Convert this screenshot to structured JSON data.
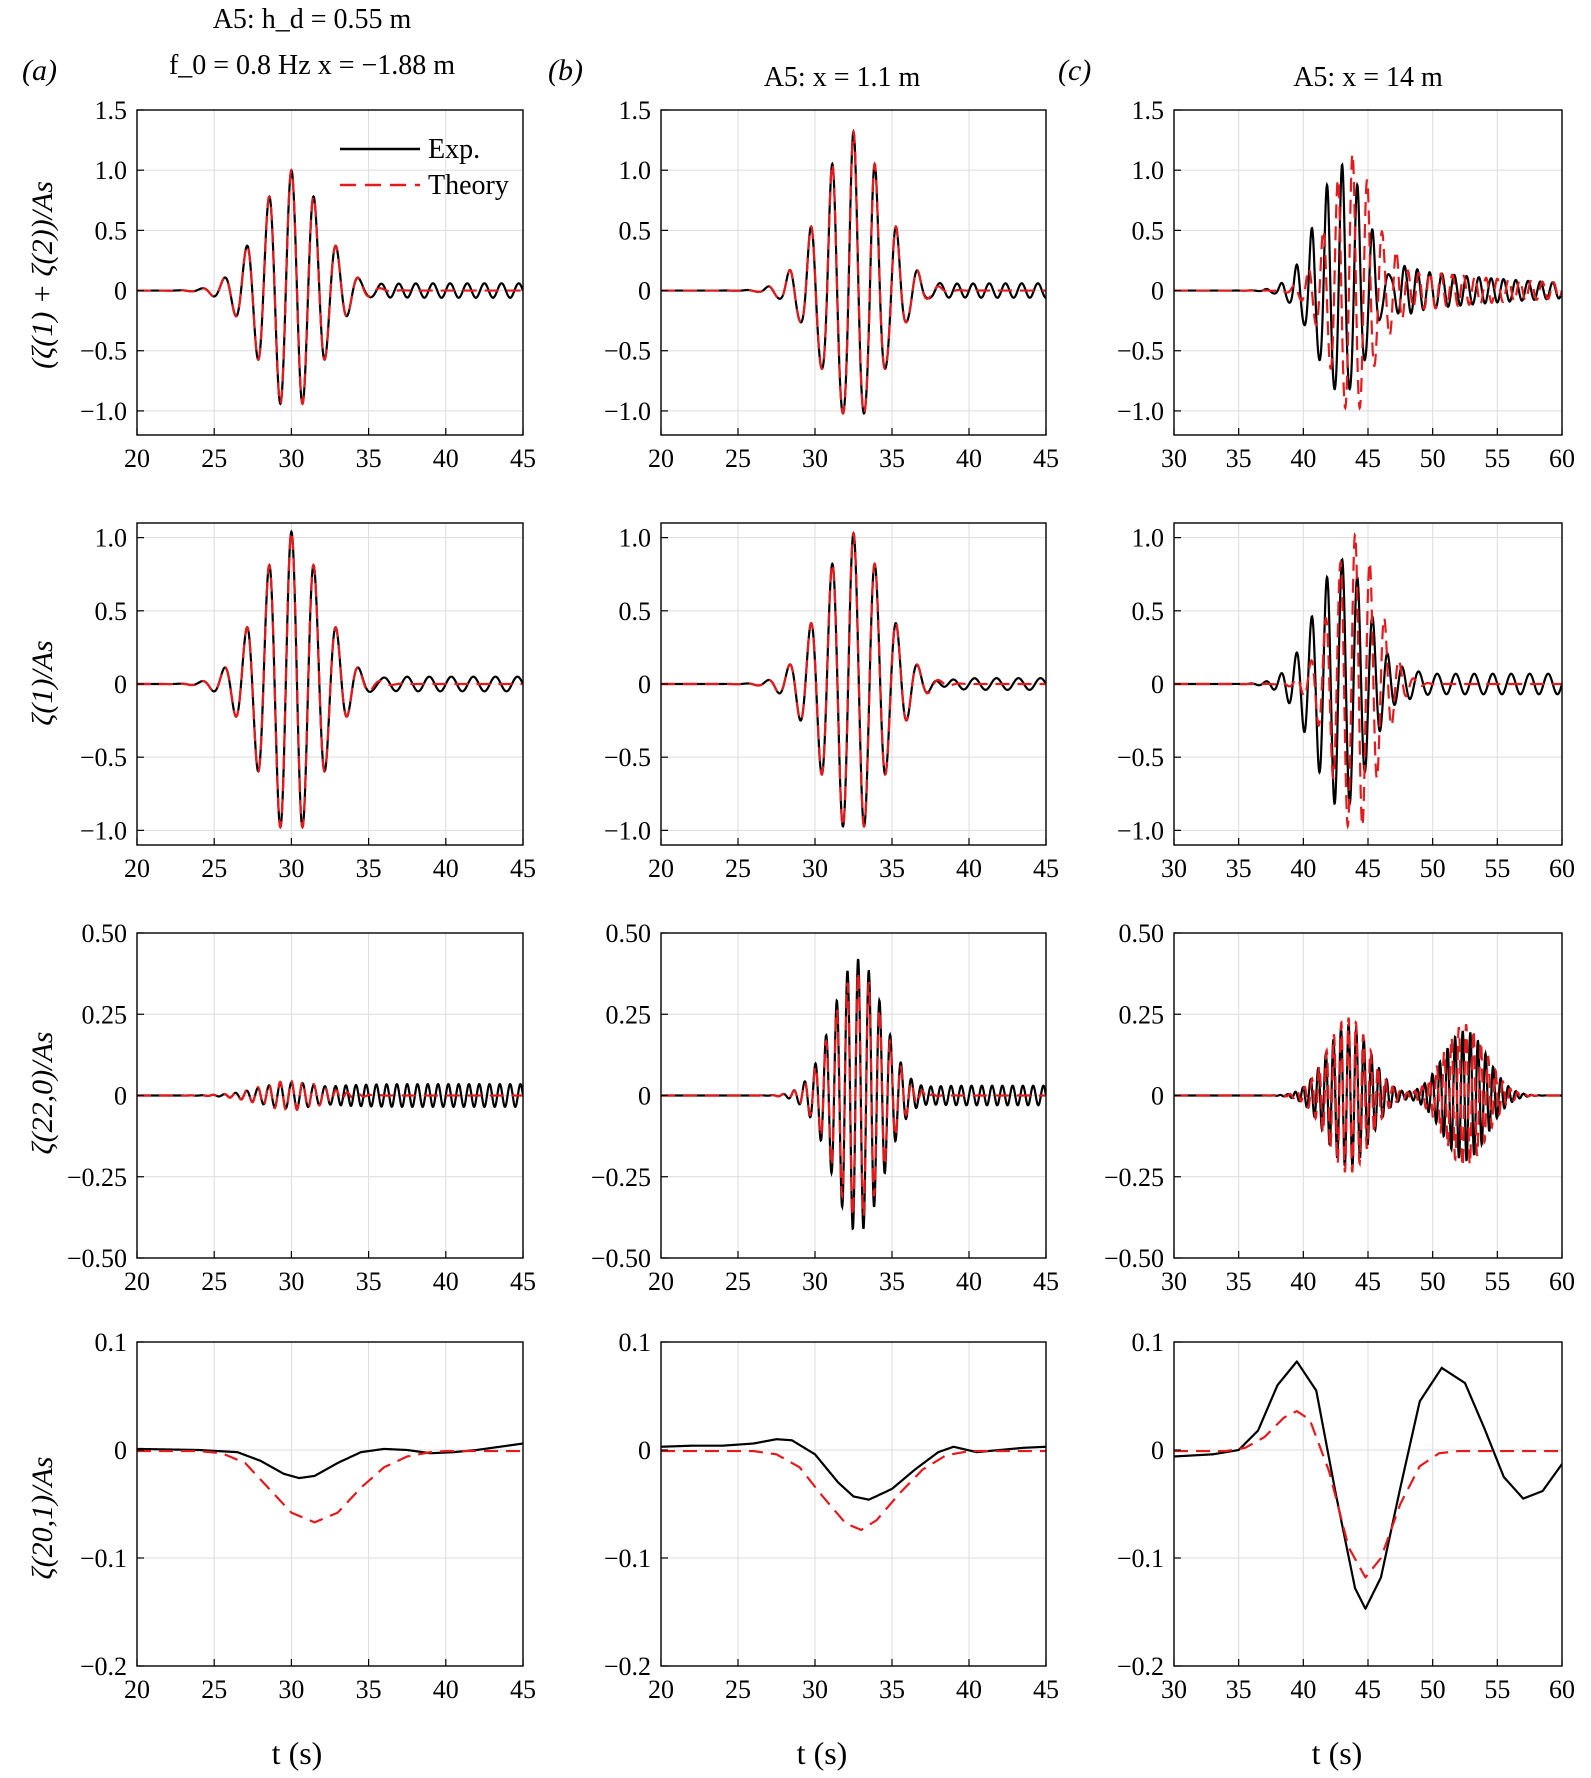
{
  "figure": {
    "panel_letters": [
      "(a)",
      "(b)",
      "(c)"
    ],
    "column_heads": [
      [
        "A5: h_d = 0.55 m",
        "f_0 = 0.8 Hz x = −1.88 m"
      ],
      [
        "A5: x = 1.1 m"
      ],
      [
        "A5: x = 14 m"
      ]
    ],
    "row_ylabels": [
      "(ζ(1) + ζ(2))/As",
      "ζ(1)/As",
      "ζ(22,0)/As",
      "ζ(20,1)/As"
    ],
    "xlabel": "t (s)",
    "legend": [
      {
        "label": "Exp.",
        "color": "#000000",
        "style": "solid"
      },
      {
        "label": "Theory",
        "color": "#e41a1c",
        "style": "dashed"
      }
    ]
  },
  "chart_data": [
    {
      "type": "line",
      "panel": "(a)",
      "row": 1,
      "ylabel": "(ζ(1)+ζ(2))/As",
      "xlim": [
        20,
        45
      ],
      "ylim": [
        -1.2,
        1.5
      ],
      "xticks": [
        20,
        25,
        30,
        35,
        40,
        45
      ],
      "yticks": [
        -1.0,
        -0.5,
        0,
        0.5,
        1.0,
        1.5
      ],
      "ytick_labels": [
        "−1.0",
        "−0.5",
        "0",
        "0.5",
        "1.0",
        "1.5"
      ],
      "grid": true,
      "legend": "top-right",
      "series": [
        {
          "name": "Exp.",
          "color": "#000000",
          "style": "solid",
          "envelope": {
            "type": "gauss",
            "amp": 1.0,
            "center": 30.0,
            "width": 2.9
          },
          "carrier_freq_hz": 0.69,
          "phase_ref": 30.0,
          "tail": {
            "amp": 0.06,
            "freq": 0.9,
            "start": 35.5
          }
        },
        {
          "name": "Theory",
          "color": "#e41a1c",
          "style": "dashed",
          "envelope": {
            "type": "gauss",
            "amp": 1.0,
            "center": 30.0,
            "width": 2.9
          },
          "carrier_freq_hz": 0.69,
          "phase_ref": 30.0
        }
      ]
    },
    {
      "type": "line",
      "panel": "(b)",
      "row": 1,
      "ylabel": "",
      "xlim": [
        20,
        45
      ],
      "ylim": [
        -1.2,
        1.5
      ],
      "xticks": [
        20,
        25,
        30,
        35,
        40,
        45
      ],
      "yticks": [
        -1.0,
        -0.5,
        0,
        0.5,
        1.0,
        1.5
      ],
      "ytick_labels": [
        "−1.0",
        "−0.5",
        "0",
        "0.5",
        "1.0",
        "1.5"
      ],
      "grid": true,
      "series": [
        {
          "name": "Exp.",
          "color": "#000000",
          "style": "solid",
          "envelope": {
            "type": "gauss",
            "amp": 1.2,
            "center": 32.5,
            "width": 2.9
          },
          "carrier_freq_hz": 0.72,
          "phase_ref": 32.5,
          "offset": 0.1,
          "tail": {
            "amp": 0.06,
            "freq": 0.95,
            "start": 38.0
          }
        },
        {
          "name": "Theory",
          "color": "#e41a1c",
          "style": "dashed",
          "envelope": {
            "type": "gauss",
            "amp": 1.2,
            "center": 32.5,
            "width": 2.9
          },
          "carrier_freq_hz": 0.72,
          "phase_ref": 32.5,
          "offset": 0.1
        }
      ]
    },
    {
      "type": "line",
      "panel": "(c)",
      "row": 1,
      "ylabel": "",
      "xlim": [
        30,
        60
      ],
      "ylim": [
        -1.2,
        1.5
      ],
      "xticks": [
        30,
        35,
        40,
        45,
        50,
        55,
        60
      ],
      "yticks": [
        -1.0,
        -0.5,
        0,
        0.5,
        1.0,
        1.5
      ],
      "ytick_labels": [
        "−1.0",
        "−0.5",
        "0",
        "0.5",
        "1.0",
        "1.5"
      ],
      "grid": true,
      "series": [
        {
          "name": "Exp.",
          "color": "#000000",
          "style": "solid",
          "envelope": {
            "type": "gauss",
            "amp": 0.95,
            "center": 43.0,
            "width": 2.8
          },
          "carrier_freq_hz": 0.85,
          "phase_ref": 43.0,
          "offset": 0.1,
          "tail": {
            "amp": 0.2,
            "freq": 1.05,
            "start": 46.5,
            "decay": 12
          }
        },
        {
          "name": "Theory",
          "color": "#e41a1c",
          "style": "dashed",
          "envelope": {
            "type": "gauss",
            "amp": 1.08,
            "center": 43.8,
            "width": 2.5
          },
          "carrier_freq_hz": 0.88,
          "phase_ref": 43.8,
          "offset": 0.05,
          "tail": {
            "amp": 0.2,
            "freq": 1.15,
            "start": 46.5,
            "decay": 12
          }
        }
      ]
    },
    {
      "type": "line",
      "panel": "(a)",
      "row": 2,
      "ylabel": "ζ(1)/As",
      "xlim": [
        20,
        45
      ],
      "ylim": [
        -1.1,
        1.1
      ],
      "xticks": [
        20,
        25,
        30,
        35,
        40,
        45
      ],
      "yticks": [
        -1.0,
        -0.5,
        0,
        0.5,
        1.0
      ],
      "ytick_labels": [
        "−1.0",
        "−0.5",
        "0",
        "0.5",
        "1.0"
      ],
      "grid": true,
      "series": [
        {
          "name": "Exp.",
          "color": "#000000",
          "style": "solid",
          "envelope": {
            "type": "gauss",
            "amp": 1.04,
            "center": 30.0,
            "width": 2.9
          },
          "carrier_freq_hz": 0.69,
          "phase_ref": 30.0,
          "tail": {
            "amp": 0.05,
            "freq": 0.7,
            "start": 35.5
          }
        },
        {
          "name": "Theory",
          "color": "#e41a1c",
          "style": "dashed",
          "envelope": {
            "type": "gauss",
            "amp": 1.04,
            "center": 30.0,
            "width": 2.9
          },
          "carrier_freq_hz": 0.69,
          "phase_ref": 30.0
        }
      ]
    },
    {
      "type": "line",
      "panel": "(b)",
      "row": 2,
      "ylabel": "",
      "xlim": [
        20,
        45
      ],
      "ylim": [
        -1.1,
        1.1
      ],
      "xticks": [
        20,
        25,
        30,
        35,
        40,
        45
      ],
      "yticks": [
        -1.0,
        -0.5,
        0,
        0.5,
        1.0
      ],
      "ytick_labels": [
        "−1.0",
        "−0.5",
        "0",
        "0.5",
        "1.0"
      ],
      "grid": true,
      "series": [
        {
          "name": "Exp.",
          "color": "#000000",
          "style": "solid",
          "envelope": {
            "type": "gauss",
            "amp": 1.03,
            "center": 32.5,
            "width": 2.9
          },
          "carrier_freq_hz": 0.72,
          "phase_ref": 32.5,
          "tail": {
            "amp": 0.04,
            "freq": 0.7,
            "start": 38.0
          }
        },
        {
          "name": "Theory",
          "color": "#e41a1c",
          "style": "dashed",
          "envelope": {
            "type": "gauss",
            "amp": 1.03,
            "center": 32.5,
            "width": 2.9
          },
          "carrier_freq_hz": 0.72,
          "phase_ref": 32.5
        }
      ]
    },
    {
      "type": "line",
      "panel": "(c)",
      "row": 2,
      "ylabel": "",
      "xlim": [
        30,
        60
      ],
      "ylim": [
        -1.1,
        1.1
      ],
      "xticks": [
        30,
        35,
        40,
        45,
        50,
        55,
        60
      ],
      "yticks": [
        -1.0,
        -0.5,
        0,
        0.5,
        1.0
      ],
      "ytick_labels": [
        "−1.0",
        "−0.5",
        "0",
        "0.5",
        "1.0"
      ],
      "grid": true,
      "series": [
        {
          "name": "Exp.",
          "color": "#000000",
          "style": "solid",
          "envelope": {
            "type": "gauss",
            "amp": 0.85,
            "center": 43.0,
            "width": 3.0
          },
          "carrier_freq_hz": 0.85,
          "phase_ref": 43.0,
          "tail": {
            "amp": 0.07,
            "freq": 0.7,
            "start": 47.0
          }
        },
        {
          "name": "Theory",
          "color": "#e41a1c",
          "style": "dashed",
          "envelope": {
            "type": "gauss",
            "amp": 1.02,
            "center": 44.0,
            "width": 2.5
          },
          "carrier_freq_hz": 0.88,
          "phase_ref": 44.0
        }
      ]
    },
    {
      "type": "line",
      "panel": "(a)",
      "row": 3,
      "ylabel": "ζ(22,0)/As",
      "xlim": [
        20,
        45
      ],
      "ylim": [
        -0.5,
        0.5
      ],
      "xticks": [
        20,
        25,
        30,
        35,
        40,
        45
      ],
      "yticks": [
        -0.5,
        -0.25,
        0,
        0.25,
        0.5
      ],
      "ytick_labels": [
        "−0.50",
        "−0.25",
        "0",
        "0.25",
        "0.50"
      ],
      "grid": true,
      "series": [
        {
          "name": "Exp.",
          "color": "#000000",
          "style": "solid",
          "envelope": {
            "type": "gauss",
            "amp": 0.04,
            "center": 30.0,
            "width": 2.9
          },
          "carrier_freq_hz": 1.38,
          "phase_ref": 30.0,
          "tail": {
            "amp": 0.035,
            "freq": 1.5,
            "start": 33.0
          }
        },
        {
          "name": "Theory",
          "color": "#e41a1c",
          "style": "dashed",
          "envelope": {
            "type": "gauss",
            "amp": 0.045,
            "center": 30.0,
            "width": 2.9
          },
          "carrier_freq_hz": 1.38,
          "phase_ref": 30.0
        }
      ]
    },
    {
      "type": "line",
      "panel": "(b)",
      "row": 3,
      "ylabel": "",
      "xlim": [
        20,
        45
      ],
      "ylim": [
        -0.5,
        0.5
      ],
      "xticks": [
        20,
        25,
        30,
        35,
        40,
        45
      ],
      "yticks": [
        -0.5,
        -0.25,
        0,
        0.25,
        0.5
      ],
      "ytick_labels": [
        "−0.50",
        "−0.25",
        "0",
        "0.25",
        "0.50"
      ],
      "grid": true,
      "series": [
        {
          "name": "Exp.",
          "color": "#000000",
          "style": "solid",
          "envelope": {
            "type": "gauss",
            "amp": 0.42,
            "center": 32.8,
            "width": 2.3
          },
          "carrier_freq_hz": 1.44,
          "phase_ref": 32.8,
          "tail": {
            "amp": 0.03,
            "freq": 1.5,
            "start": 36.5
          }
        },
        {
          "name": "Theory",
          "color": "#e41a1c",
          "style": "dashed",
          "envelope": {
            "type": "gauss",
            "amp": 0.38,
            "center": 32.8,
            "width": 2.3
          },
          "carrier_freq_hz": 1.44,
          "phase_ref": 32.8
        }
      ]
    },
    {
      "type": "line",
      "panel": "(c)",
      "row": 3,
      "ylabel": "",
      "xlim": [
        30,
        60
      ],
      "ylim": [
        -0.5,
        0.5
      ],
      "xticks": [
        30,
        35,
        40,
        45,
        50,
        55,
        60
      ],
      "yticks": [
        -0.5,
        -0.25,
        0,
        0.25,
        0.5
      ],
      "ytick_labels": [
        "−0.50",
        "−0.25",
        "0",
        "0.25",
        "0.50"
      ],
      "grid": true,
      "series": [
        {
          "name": "Exp.",
          "color": "#000000",
          "style": "solid",
          "envelope": {
            "type": "twin",
            "amp": 0.22,
            "centers": [
              43.5,
              52.5
            ],
            "width": 2.4,
            "amp2": 0.2
          },
          "carrier_freq_hz": 1.7,
          "phase_ref": 43.5
        },
        {
          "name": "Theory",
          "color": "#e41a1c",
          "style": "dashed",
          "envelope": {
            "type": "twin",
            "amp": 0.24,
            "centers": [
              43.5,
              52.5
            ],
            "width": 2.3,
            "amp2": 0.22
          },
          "carrier_freq_hz": 1.76,
          "phase_ref": 43.5
        }
      ]
    },
    {
      "type": "line",
      "panel": "(a)",
      "row": 4,
      "ylabel": "ζ(20,1)/As",
      "xlim": [
        20,
        45
      ],
      "ylim": [
        -0.2,
        0.1
      ],
      "xticks": [
        20,
        25,
        30,
        35,
        40,
        45
      ],
      "yticks": [
        -0.2,
        -0.1,
        0,
        0.1
      ],
      "ytick_labels": [
        "−0.2",
        "−0.1",
        "0",
        "0.1"
      ],
      "grid": true,
      "series": [
        {
          "name": "Exp.",
          "color": "#000000",
          "style": "solid",
          "x": [
            20,
            24,
            26.5,
            28,
            29.5,
            30.5,
            31.5,
            33,
            34.5,
            36,
            37.5,
            39,
            40.5,
            42,
            43.5,
            45
          ],
          "y": [
            0.001,
            0.0,
            -0.002,
            -0.01,
            -0.022,
            -0.026,
            -0.024,
            -0.012,
            -0.002,
            0.001,
            0.0,
            -0.003,
            -0.002,
            0.0,
            0.003,
            0.006
          ]
        },
        {
          "name": "Theory",
          "color": "#e41a1c",
          "style": "dashed",
          "x": [
            20,
            24,
            25.5,
            27,
            28.5,
            30,
            31.5,
            33,
            34.5,
            36,
            37.5,
            39,
            40,
            42,
            45
          ],
          "y": [
            -0.001,
            -0.001,
            -0.003,
            -0.012,
            -0.035,
            -0.058,
            -0.067,
            -0.058,
            -0.035,
            -0.016,
            -0.006,
            -0.002,
            -0.001,
            -0.001,
            -0.001
          ]
        }
      ]
    },
    {
      "type": "line",
      "panel": "(b)",
      "row": 4,
      "ylabel": "",
      "xlim": [
        20,
        45
      ],
      "ylim": [
        -0.2,
        0.1
      ],
      "xticks": [
        20,
        25,
        30,
        35,
        40,
        45
      ],
      "yticks": [
        -0.2,
        -0.1,
        0,
        0.1
      ],
      "ytick_labels": [
        "−0.2",
        "−0.1",
        "0",
        "0.1"
      ],
      "grid": true,
      "series": [
        {
          "name": "Exp.",
          "color": "#000000",
          "style": "solid",
          "x": [
            20,
            22,
            24,
            26,
            27.5,
            28.5,
            30,
            31.5,
            32.5,
            33.5,
            35,
            36.5,
            38,
            39,
            40.5,
            42,
            43.5,
            45
          ],
          "y": [
            0.003,
            0.004,
            0.004,
            0.006,
            0.01,
            0.009,
            -0.004,
            -0.03,
            -0.043,
            -0.046,
            -0.036,
            -0.018,
            -0.002,
            0.003,
            -0.002,
            0.0,
            0.002,
            0.003
          ]
        },
        {
          "name": "Theory",
          "color": "#e41a1c",
          "style": "dashed",
          "x": [
            20,
            26,
            27.5,
            29,
            30.5,
            32,
            33,
            34,
            35.5,
            37,
            38.5,
            40,
            45
          ],
          "y": [
            -0.001,
            -0.001,
            -0.004,
            -0.016,
            -0.043,
            -0.068,
            -0.074,
            -0.065,
            -0.04,
            -0.018,
            -0.005,
            -0.001,
            -0.001
          ]
        }
      ]
    },
    {
      "type": "line",
      "panel": "(c)",
      "row": 4,
      "ylabel": "",
      "xlim": [
        30,
        60
      ],
      "ylim": [
        -0.2,
        0.1
      ],
      "xticks": [
        30,
        35,
        40,
        45,
        50,
        55,
        60
      ],
      "yticks": [
        -0.2,
        -0.1,
        0,
        0.1
      ],
      "ytick_labels": [
        "−0.2",
        "−0.1",
        "0",
        "0.1"
      ],
      "grid": true,
      "series": [
        {
          "name": "Exp.",
          "color": "#000000",
          "style": "solid",
          "x": [
            30,
            33,
            35,
            36.5,
            38,
            39.5,
            41,
            42.5,
            44,
            44.8,
            46,
            47.5,
            49,
            50.7,
            52.5,
            54,
            55.5,
            57,
            58.5,
            60
          ],
          "y": [
            -0.006,
            -0.004,
            0.0,
            0.018,
            0.06,
            0.082,
            0.055,
            -0.04,
            -0.128,
            -0.147,
            -0.118,
            -0.035,
            0.045,
            0.076,
            0.062,
            0.02,
            -0.025,
            -0.045,
            -0.038,
            -0.013
          ]
        },
        {
          "name": "Theory",
          "color": "#e41a1c",
          "style": "dashed",
          "x": [
            30,
            34,
            35.5,
            37,
            38.5,
            39.5,
            40.5,
            42,
            43.5,
            44.8,
            46,
            47.5,
            49,
            50.5,
            52,
            60
          ],
          "y": [
            -0.001,
            -0.001,
            0.002,
            0.012,
            0.03,
            0.036,
            0.028,
            -0.02,
            -0.09,
            -0.118,
            -0.1,
            -0.05,
            -0.015,
            -0.003,
            -0.001,
            -0.001
          ]
        }
      ]
    }
  ]
}
